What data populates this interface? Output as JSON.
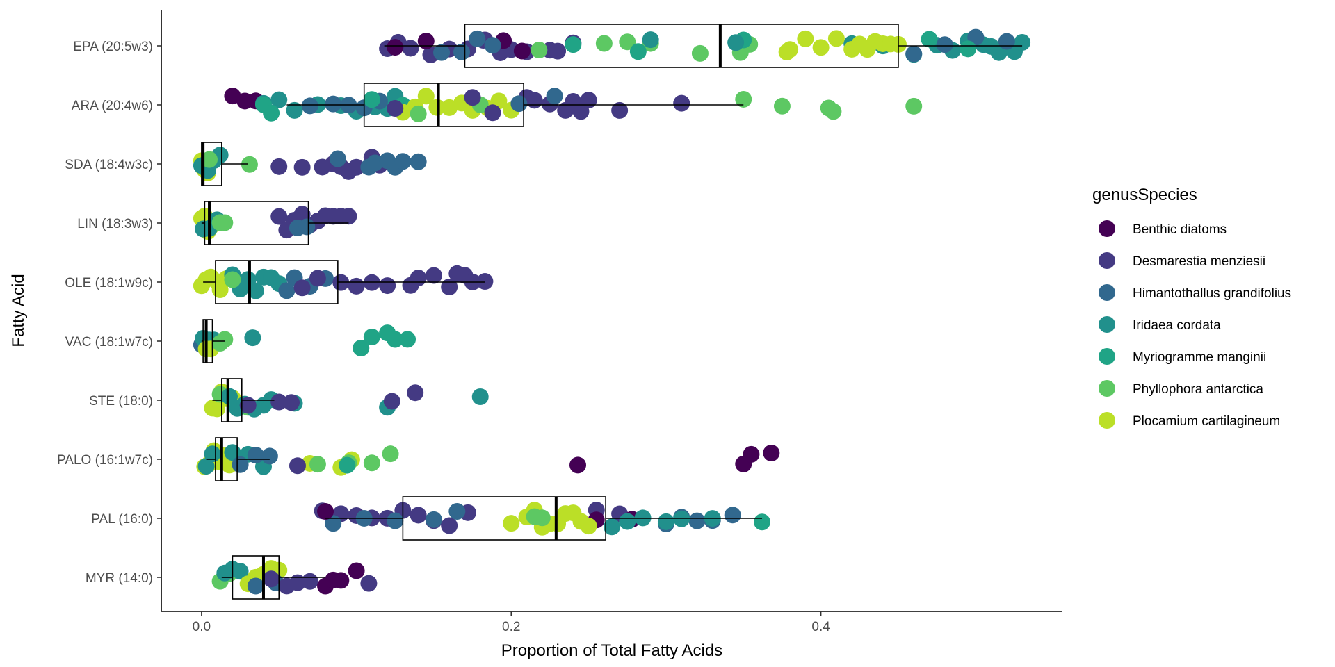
{
  "chart_data": {
    "type": "box-jitter",
    "orientation": "horizontal",
    "xlabel": "Proportion of Total Fatty Acids",
    "ylabel": "Fatty Acid",
    "xlim": [
      -0.026,
      0.556
    ],
    "x_ticks": [
      0.0,
      0.2,
      0.4
    ],
    "x_tick_labels": [
      "0.0",
      "0.2",
      "0.4"
    ],
    "grid": false,
    "categories": [
      "EPA (20:5w3)",
      "ARA (20:4w6)",
      "SDA (18:4w3c)",
      "LIN (18:3w3)",
      "OLE (18:1w9c)",
      "VAC (18:1w7c)",
      "STE (18:0)",
      "PALO (16:1w7c)",
      "PAL (16:0)",
      "MYR (14:0)"
    ],
    "boxes": [
      {
        "category": "EPA (20:5w3)",
        "whisker_low": 0.118,
        "q1": 0.17,
        "median": 0.335,
        "q3": 0.45,
        "whisker_high": 0.53
      },
      {
        "category": "ARA (20:4w6)",
        "whisker_low": 0.055,
        "q1": 0.105,
        "median": 0.153,
        "q3": 0.208,
        "whisker_high": 0.35
      },
      {
        "category": "SDA (18:4w3c)",
        "whisker_low": 0.0,
        "q1": 0.0,
        "median": 0.001,
        "q3": 0.013,
        "whisker_high": 0.03
      },
      {
        "category": "LIN (18:3w3)",
        "whisker_low": 0.0,
        "q1": 0.002,
        "median": 0.005,
        "q3": 0.069,
        "whisker_high": 0.095
      },
      {
        "category": "OLE (18:1w9c)",
        "whisker_low": 0.001,
        "q1": 0.009,
        "median": 0.031,
        "q3": 0.088,
        "whisker_high": 0.183
      },
      {
        "category": "VAC (18:1w7c)",
        "whisker_low": 0.0,
        "q1": 0.001,
        "median": 0.003,
        "q3": 0.007,
        "whisker_high": 0.015
      },
      {
        "category": "STE (18:0)",
        "whisker_low": 0.007,
        "q1": 0.013,
        "median": 0.017,
        "q3": 0.026,
        "whisker_high": 0.047
      },
      {
        "category": "PALO (16:1w7c)",
        "whisker_low": 0.003,
        "q1": 0.009,
        "median": 0.013,
        "q3": 0.023,
        "whisker_high": 0.044
      },
      {
        "category": "PAL (16:0)",
        "whisker_low": 0.08,
        "q1": 0.13,
        "median": 0.229,
        "q3": 0.261,
        "whisker_high": 0.362
      },
      {
        "category": "MYR (14:0)",
        "whisker_low": 0.013,
        "q1": 0.02,
        "median": 0.04,
        "q3": 0.05,
        "whisker_high": 0.08
      }
    ],
    "legend": {
      "title": "genusSpecies",
      "placement": "right",
      "entries": [
        {
          "name": "Benthic diatoms",
          "color": "#440154"
        },
        {
          "name": "Desmarestia menziesii",
          "color": "#443A83"
        },
        {
          "name": "Himantothallus grandifolius",
          "color": "#31688E"
        },
        {
          "name": "Iridaea cordata",
          "color": "#21908C"
        },
        {
          "name": "Myriogramme manginii",
          "color": "#20A486"
        },
        {
          "name": "Phyllophora antarctica",
          "color": "#5DC863"
        },
        {
          "name": "Plocamium cartilagineum",
          "color": "#BBDF27"
        }
      ]
    },
    "points": [
      {
        "category": "EPA (20:5w3)",
        "species": 1,
        "values": [
          0.12,
          0.127,
          0.135,
          0.148,
          0.16,
          0.172,
          0.183,
          0.193,
          0.2,
          0.21,
          0.225,
          0.24,
          0.23,
          0.182
        ]
      },
      {
        "category": "EPA (20:5w3)",
        "species": 0,
        "values": [
          0.125,
          0.145,
          0.195,
          0.207
        ]
      },
      {
        "category": "EPA (20:5w3)",
        "species": 2,
        "values": [
          0.155,
          0.168,
          0.178,
          0.188
        ]
      },
      {
        "category": "EPA (20:5w3)",
        "species": 5,
        "values": [
          0.218,
          0.26,
          0.275,
          0.29,
          0.322,
          0.348,
          0.354
        ]
      },
      {
        "category": "EPA (20:5w3)",
        "species": 4,
        "values": [
          0.24,
          0.282,
          0.35
        ]
      },
      {
        "category": "EPA (20:5w3)",
        "species": 3,
        "values": [
          0.29,
          0.345,
          0.42,
          0.44,
          0.46,
          0.475,
          0.485,
          0.495,
          0.505,
          0.515,
          0.525,
          0.53,
          0.51
        ]
      },
      {
        "category": "EPA (20:5w3)",
        "species": 6,
        "values": [
          0.378,
          0.38,
          0.39,
          0.4,
          0.41,
          0.42,
          0.425,
          0.43,
          0.435,
          0.44,
          0.445,
          0.45
        ]
      },
      {
        "category": "EPA (20:5w3)",
        "species": 2,
        "values": [
          0.46,
          0.48,
          0.5,
          0.52
        ]
      },
      {
        "category": "EPA (20:5w3)",
        "species": 4,
        "values": [
          0.47,
          0.495
        ]
      },
      {
        "category": "ARA (20:4w6)",
        "species": 0,
        "values": [
          0.02,
          0.028,
          0.035
        ]
      },
      {
        "category": "ARA (20:4w6)",
        "species": 3,
        "values": [
          0.04,
          0.05,
          0.06,
          0.075,
          0.09,
          0.1,
          0.112,
          0.12,
          0.125
        ]
      },
      {
        "category": "ARA (20:4w6)",
        "species": 2,
        "values": [
          0.07,
          0.085,
          0.095,
          0.105,
          0.115
        ]
      },
      {
        "category": "ARA (20:4w6)",
        "species": 4,
        "values": [
          0.04,
          0.045,
          0.11,
          0.13
        ]
      },
      {
        "category": "ARA (20:4w6)",
        "species": 6,
        "values": [
          0.13,
          0.138,
          0.145,
          0.152,
          0.16,
          0.168,
          0.175,
          0.185,
          0.192,
          0.2
        ]
      },
      {
        "category": "ARA (20:4w6)",
        "species": 5,
        "values": [
          0.14,
          0.18,
          0.35,
          0.375,
          0.405,
          0.408,
          0.46
        ]
      },
      {
        "category": "ARA (20:4w6)",
        "species": 1,
        "values": [
          0.125,
          0.175,
          0.188,
          0.21,
          0.215,
          0.225,
          0.235,
          0.24,
          0.245,
          0.25,
          0.27,
          0.31
        ]
      },
      {
        "category": "ARA (20:4w6)",
        "species": 2,
        "values": [
          0.205,
          0.228
        ]
      },
      {
        "category": "SDA (18:4w3c)",
        "species": 6,
        "values": [
          0.0,
          0.001,
          0.002,
          0.003,
          0.004
        ]
      },
      {
        "category": "SDA (18:4w3c)",
        "species": 3,
        "values": [
          0.0,
          0.004,
          0.008,
          0.012
        ]
      },
      {
        "category": "SDA (18:4w3c)",
        "species": 5,
        "values": [
          0.005,
          0.031
        ]
      },
      {
        "category": "SDA (18:4w3c)",
        "species": 1,
        "values": [
          0.05,
          0.065,
          0.078,
          0.085,
          0.09,
          0.095,
          0.1,
          0.11,
          0.115
        ]
      },
      {
        "category": "SDA (18:4w3c)",
        "species": 2,
        "values": [
          0.088,
          0.108,
          0.112,
          0.12,
          0.125,
          0.13,
          0.14
        ]
      },
      {
        "category": "LIN (18:3w3)",
        "species": 6,
        "values": [
          0.0,
          0.001,
          0.002,
          0.003,
          0.004,
          0.006,
          0.008
        ]
      },
      {
        "category": "LIN (18:3w3)",
        "species": 3,
        "values": [
          0.001,
          0.005,
          0.01
        ]
      },
      {
        "category": "LIN (18:3w3)",
        "species": 5,
        "values": [
          0.012,
          0.015
        ]
      },
      {
        "category": "LIN (18:3w3)",
        "species": 1,
        "values": [
          0.05,
          0.055,
          0.06,
          0.065,
          0.07,
          0.075,
          0.08,
          0.085,
          0.09,
          0.095
        ]
      },
      {
        "category": "LIN (18:3w3)",
        "species": 2,
        "values": [
          0.062,
          0.068
        ]
      },
      {
        "category": "OLE (18:1w9c)",
        "species": 6,
        "values": [
          0.0,
          0.003,
          0.006,
          0.01,
          0.012,
          0.016
        ]
      },
      {
        "category": "OLE (18:1w9c)",
        "species": 3,
        "values": [
          0.02,
          0.025,
          0.03,
          0.035,
          0.04,
          0.045,
          0.05
        ]
      },
      {
        "category": "OLE (18:1w9c)",
        "species": 2,
        "values": [
          0.055,
          0.06,
          0.07,
          0.08
        ]
      },
      {
        "category": "OLE (18:1w9c)",
        "species": 1,
        "values": [
          0.065,
          0.075,
          0.09,
          0.1,
          0.11,
          0.12,
          0.135,
          0.14,
          0.15,
          0.16,
          0.165,
          0.17,
          0.175,
          0.183
        ]
      },
      {
        "category": "OLE (18:1w9c)",
        "species": 5,
        "values": [
          0.02
        ]
      },
      {
        "category": "VAC (18:1w7c)",
        "species": 2,
        "values": [
          0.0,
          0.002,
          0.004
        ]
      },
      {
        "category": "VAC (18:1w7c)",
        "species": 3,
        "values": [
          0.001,
          0.005,
          0.008,
          0.011,
          0.033
        ]
      },
      {
        "category": "VAC (18:1w7c)",
        "species": 6,
        "values": [
          0.003,
          0.006
        ]
      },
      {
        "category": "VAC (18:1w7c)",
        "species": 5,
        "values": [
          0.012,
          0.015
        ]
      },
      {
        "category": "VAC (18:1w7c)",
        "species": 4,
        "values": [
          0.103,
          0.11,
          0.12,
          0.125,
          0.133
        ]
      },
      {
        "category": "STE (18:0)",
        "species": 6,
        "values": [
          0.007,
          0.01,
          0.013,
          0.016,
          0.02
        ]
      },
      {
        "category": "STE (18:0)",
        "species": 5,
        "values": [
          0.012,
          0.03
        ]
      },
      {
        "category": "STE (18:0)",
        "species": 3,
        "values": [
          0.018,
          0.023,
          0.028,
          0.034,
          0.04,
          0.045,
          0.06,
          0.12,
          0.18
        ]
      },
      {
        "category": "STE (18:0)",
        "species": 1,
        "values": [
          0.03,
          0.05,
          0.058,
          0.123,
          0.138
        ]
      },
      {
        "category": "PALO (16:1w7c)",
        "species": 6,
        "values": [
          0.002,
          0.005,
          0.008,
          0.012,
          0.015,
          0.018,
          0.07,
          0.09,
          0.097
        ]
      },
      {
        "category": "PALO (16:1w7c)",
        "species": 3,
        "values": [
          0.003,
          0.007,
          0.02,
          0.03,
          0.04
        ]
      },
      {
        "category": "PALO (16:1w7c)",
        "species": 2,
        "values": [
          0.025,
          0.035,
          0.044
        ]
      },
      {
        "category": "PALO (16:1w7c)",
        "species": 1,
        "values": [
          0.062
        ]
      },
      {
        "category": "PALO (16:1w7c)",
        "species": 5,
        "values": [
          0.075,
          0.095,
          0.11,
          0.122
        ]
      },
      {
        "category": "PALO (16:1w7c)",
        "species": 4,
        "values": [
          0.094
        ]
      },
      {
        "category": "PALO (16:1w7c)",
        "species": 0,
        "values": [
          0.243,
          0.35,
          0.355,
          0.368
        ]
      },
      {
        "category": "PAL (16:0)",
        "species": 1,
        "values": [
          0.078,
          0.09,
          0.1,
          0.11,
          0.12,
          0.13,
          0.14,
          0.15,
          0.16,
          0.172,
          0.255,
          0.27
        ]
      },
      {
        "category": "PAL (16:0)",
        "species": 2,
        "values": [
          0.085,
          0.105,
          0.125,
          0.15,
          0.165,
          0.3,
          0.31,
          0.32,
          0.33,
          0.343
        ]
      },
      {
        "category": "PAL (16:0)",
        "species": 0,
        "values": [
          0.08,
          0.255,
          0.278
        ]
      },
      {
        "category": "PAL (16:0)",
        "species": 6,
        "values": [
          0.2,
          0.21,
          0.215,
          0.22,
          0.225,
          0.23,
          0.235,
          0.24,
          0.245,
          0.25
        ]
      },
      {
        "category": "PAL (16:0)",
        "species": 5,
        "values": [
          0.215,
          0.22
        ]
      },
      {
        "category": "PAL (16:0)",
        "species": 3,
        "values": [
          0.265,
          0.275,
          0.285,
          0.3,
          0.31,
          0.33
        ]
      },
      {
        "category": "PAL (16:0)",
        "species": 4,
        "values": [
          0.362
        ]
      },
      {
        "category": "MYR (14:0)",
        "species": 5,
        "values": [
          0.012,
          0.018
        ]
      },
      {
        "category": "MYR (14:0)",
        "species": 3,
        "values": [
          0.015,
          0.02,
          0.025
        ]
      },
      {
        "category": "MYR (14:0)",
        "species": 6,
        "values": [
          0.03,
          0.035,
          0.04,
          0.045,
          0.05
        ]
      },
      {
        "category": "MYR (14:0)",
        "species": 2,
        "values": [
          0.035,
          0.048
        ]
      },
      {
        "category": "MYR (14:0)",
        "species": 1,
        "values": [
          0.045,
          0.055,
          0.062,
          0.07,
          0.108
        ]
      },
      {
        "category": "MYR (14:0)",
        "species": 0,
        "values": [
          0.08,
          0.085,
          0.09,
          0.1
        ]
      }
    ]
  }
}
